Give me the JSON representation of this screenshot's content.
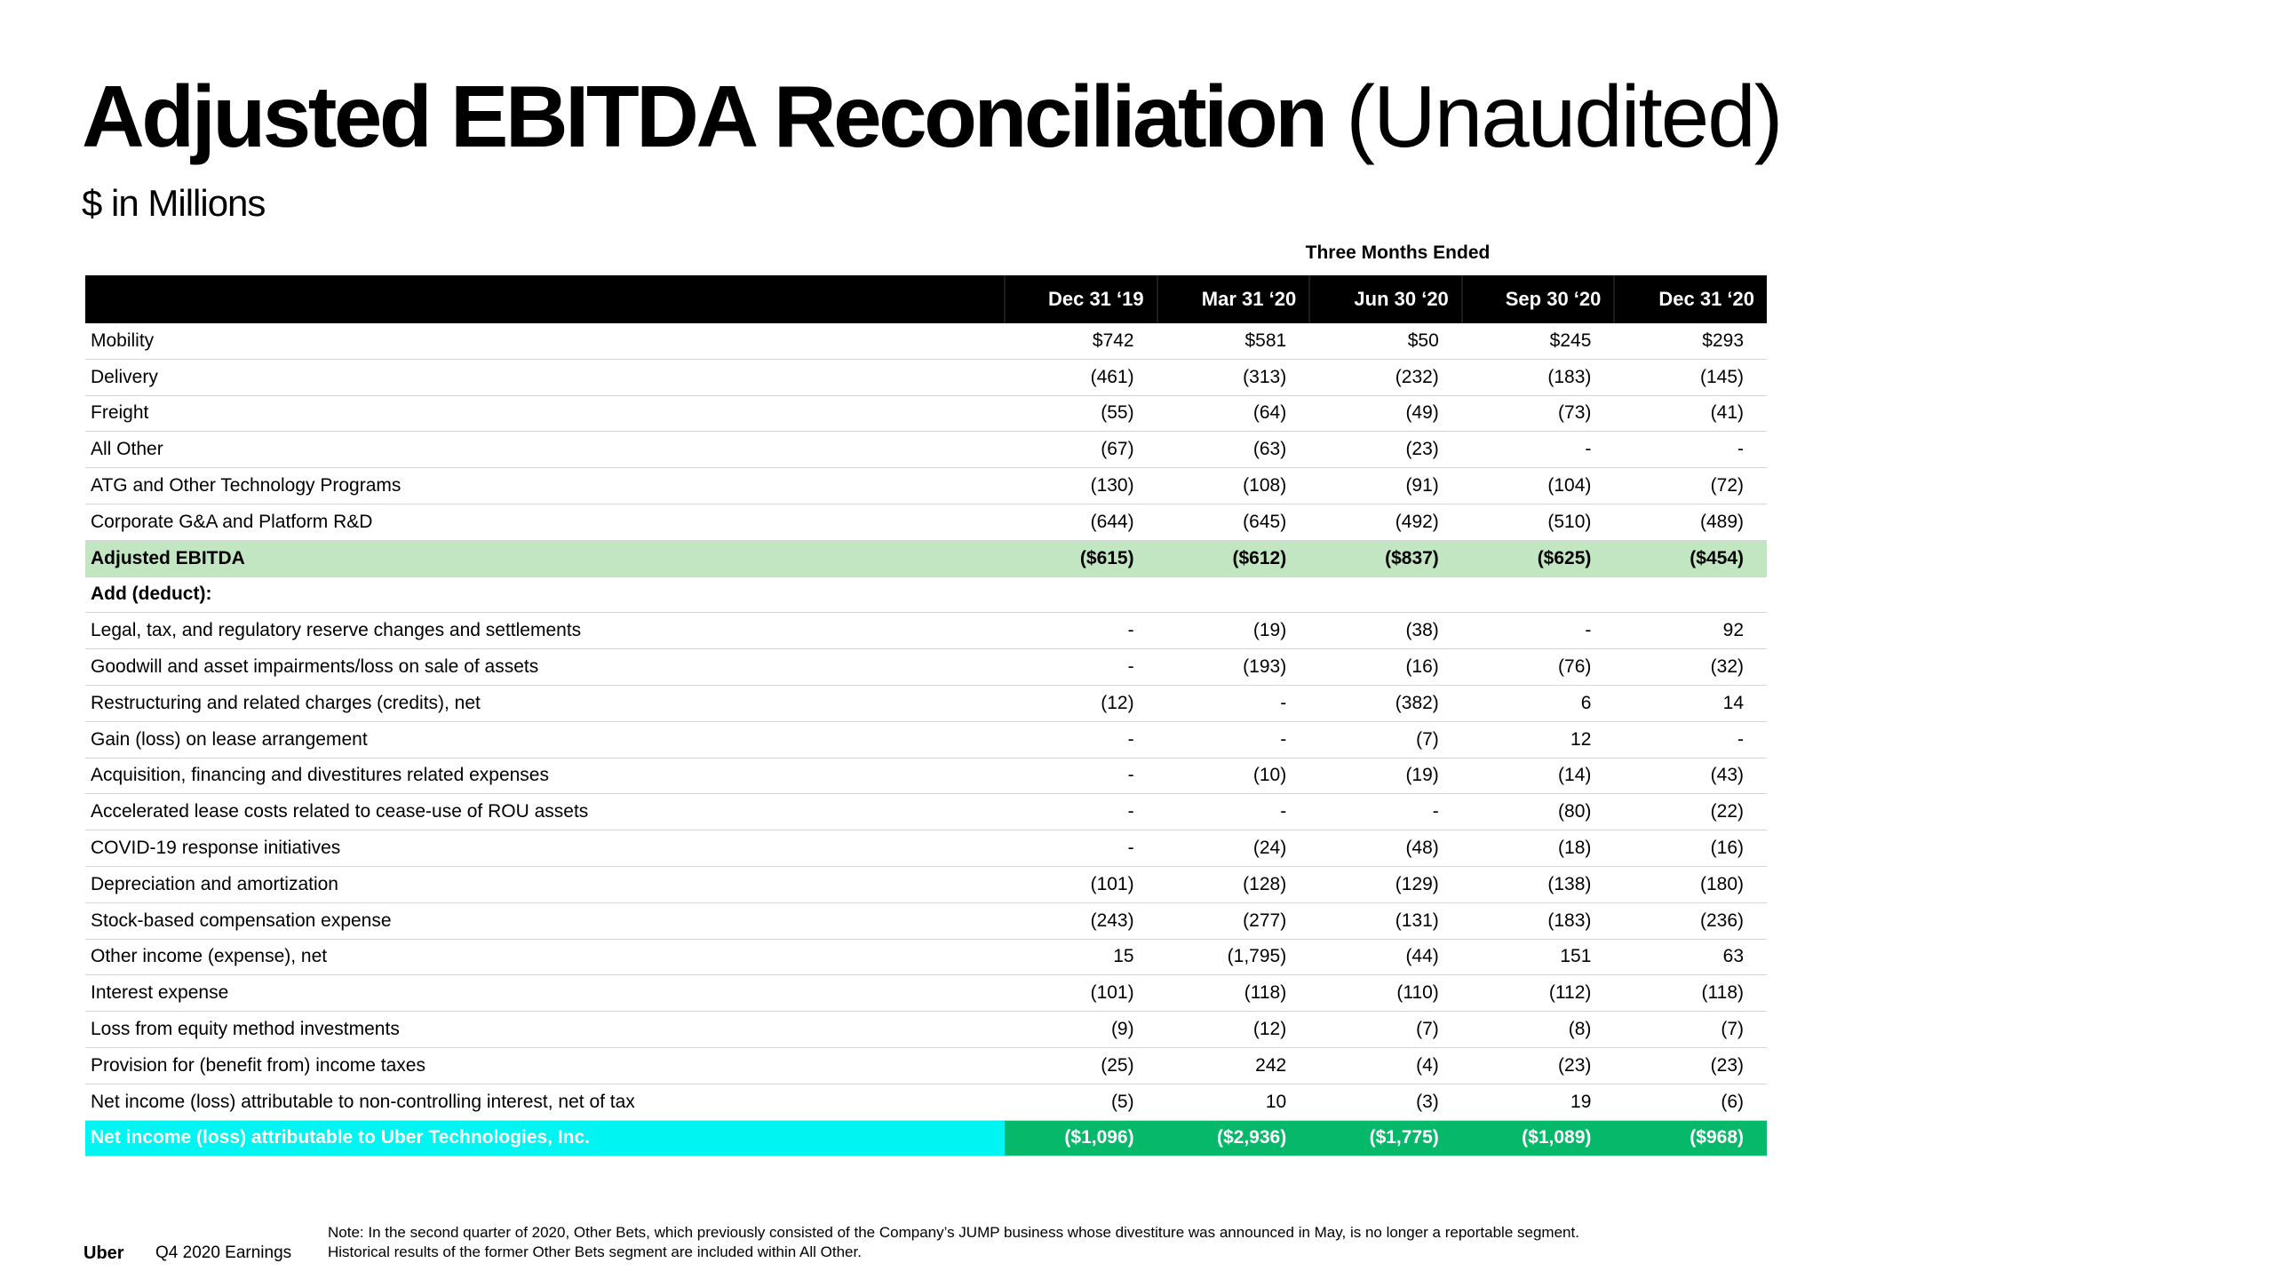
{
  "slide": {
    "title_bold": "Adjusted EBITDA Reconciliation",
    "title_light": "(Unaudited)",
    "subtitle": "$ in Millions"
  },
  "table": {
    "period_caption": "Three Months Ended",
    "columns": [
      "Dec 31 ‘19",
      "Mar 31 ‘20",
      "Jun 30 ‘20",
      "Sep 30 ‘20",
      "Dec 31 ‘20"
    ],
    "rows": [
      {
        "label": "Mobility",
        "values": [
          "$742",
          "$581",
          "$50",
          "$245",
          "$293"
        ]
      },
      {
        "label": "Delivery",
        "values": [
          "(461)",
          "(313)",
          "(232)",
          "(183)",
          "(145)"
        ]
      },
      {
        "label": "Freight",
        "values": [
          "(55)",
          "(64)",
          "(49)",
          "(73)",
          "(41)"
        ]
      },
      {
        "label": "All Other",
        "values": [
          "(67)",
          "(63)",
          "(23)",
          "-",
          "-"
        ]
      },
      {
        "label": "ATG and Other Technology Programs",
        "values": [
          "(130)",
          "(108)",
          "(91)",
          "(104)",
          "(72)"
        ]
      },
      {
        "label": "Corporate G&A and Platform R&D",
        "values": [
          "(644)",
          "(645)",
          "(492)",
          "(510)",
          "(489)"
        ]
      },
      {
        "label": "Adjusted EBITDA",
        "values": [
          "($615)",
          "($612)",
          "($837)",
          "($625)",
          "($454)"
        ]
      },
      {
        "label": "Add (deduct):",
        "values": [
          "",
          "",
          "",
          "",
          ""
        ]
      },
      {
        "label": "Legal, tax, and regulatory reserve changes and settlements",
        "values": [
          "-",
          "(19)",
          "(38)",
          "-",
          "92"
        ]
      },
      {
        "label": "Goodwill and asset impairments/loss on sale of assets",
        "values": [
          "-",
          "(193)",
          "(16)",
          "(76)",
          "(32)"
        ]
      },
      {
        "label": "Restructuring and related charges (credits), net",
        "values": [
          "(12)",
          "-",
          "(382)",
          "6",
          "14"
        ]
      },
      {
        "label": "Gain (loss) on lease arrangement",
        "values": [
          "-",
          "-",
          "(7)",
          "12",
          "-"
        ]
      },
      {
        "label": "Acquisition, financing and divestitures related expenses",
        "values": [
          "-",
          "(10)",
          "(19)",
          "(14)",
          "(43)"
        ]
      },
      {
        "label": "Accelerated lease costs related to cease-use of ROU assets",
        "values": [
          "-",
          "-",
          "-",
          "(80)",
          "(22)"
        ]
      },
      {
        "label": "COVID-19 response initiatives",
        "values": [
          "-",
          "(24)",
          "(48)",
          "(18)",
          "(16)"
        ]
      },
      {
        "label": "Depreciation and amortization",
        "values": [
          "(101)",
          "(128)",
          "(129)",
          "(138)",
          "(180)"
        ]
      },
      {
        "label": "Stock-based compensation expense",
        "values": [
          "(243)",
          "(277)",
          "(131)",
          "(183)",
          "(236)"
        ]
      },
      {
        "label": "Other income (expense), net",
        "values": [
          "15",
          "(1,795)",
          "(44)",
          "151",
          "63"
        ]
      },
      {
        "label": "Interest expense",
        "values": [
          "(101)",
          "(118)",
          "(110)",
          "(112)",
          "(118)"
        ]
      },
      {
        "label": "Loss from equity method investments",
        "values": [
          "(9)",
          "(12)",
          "(7)",
          "(8)",
          "(7)"
        ]
      },
      {
        "label": "Provision for (benefit from) income taxes",
        "values": [
          "(25)",
          "242",
          "(4)",
          "(23)",
          "(23)"
        ]
      },
      {
        "label": "Net income (loss) attributable to non-controlling interest, net of tax",
        "values": [
          "(5)",
          "10",
          "(3)",
          "19",
          "(6)"
        ]
      },
      {
        "label": "Net income (loss) attributable to Uber Technologies, Inc.",
        "values": [
          "($1,096)",
          "($2,936)",
          "($1,775)",
          "($1,089)",
          "($968)"
        ]
      }
    ]
  },
  "footer": {
    "brand": "Uber",
    "event": "Q4 2020 Earnings",
    "note_line1": "Note: In the second quarter of 2020, Other Bets, which previously consisted of the Company’s JUMP business whose divestiture was announced in May, is no longer a reportable segment.",
    "note_line2": "Historical results of the former Other Bets segment are included within All Other."
  },
  "colors": {
    "header_bg": "#000000",
    "adjusted_ebitda_row": "#c2e6c2",
    "net_income_values_bg": "#06b86a",
    "net_income_label_bg": "#00f4f2"
  }
}
